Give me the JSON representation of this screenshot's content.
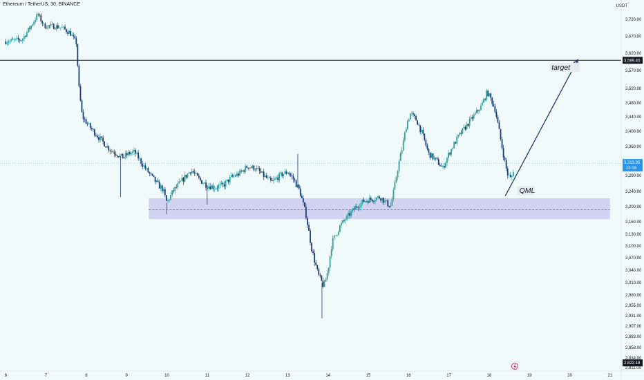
{
  "header": {
    "title": "Ethereum / TetherUS, 30, BINANCE",
    "currency": "USDT"
  },
  "colors": {
    "up": "#26a69a",
    "down": "#1f3c6e",
    "zone": "#c9c9ef",
    "line": "#131722",
    "arrow": "#1f3c6e",
    "last": "#2196f3"
  },
  "chart_data": {
    "type": "candlestick",
    "x_ticks": [
      "6",
      "7",
      "8",
      "9",
      "10",
      "11",
      "12",
      "13",
      "14",
      "15",
      "16",
      "17",
      "18",
      "19",
      "20",
      "21"
    ],
    "y_ticks": [
      {
        "v": 3720,
        "t": "3,720.00"
      },
      {
        "v": 3670,
        "t": "3,670.00"
      },
      {
        "v": 3620,
        "t": "3,620.00"
      },
      {
        "v": 3570,
        "t": "3,570.00"
      },
      {
        "v": 3520,
        "t": "3,520.00"
      },
      {
        "v": 3480,
        "t": "3,480.00"
      },
      {
        "v": 3440,
        "t": "3,440.00"
      },
      {
        "v": 3400,
        "t": "3,400.00"
      },
      {
        "v": 3360,
        "t": "3,360.00"
      },
      {
        "v": 3280,
        "t": "3,280.00"
      },
      {
        "v": 3240,
        "t": "3,240.00"
      },
      {
        "v": 3200,
        "t": "3,200.00"
      },
      {
        "v": 3160,
        "t": "3,160.00"
      },
      {
        "v": 3130,
        "t": "3,130.00"
      },
      {
        "v": 3100,
        "t": "3,100.00"
      },
      {
        "v": 3070,
        "t": "3,070.00"
      },
      {
        "v": 3040,
        "t": "3,040.00"
      },
      {
        "v": 3010,
        "t": "3,010.00"
      },
      {
        "v": 2980,
        "t": "2,980.00"
      },
      {
        "v": 2955,
        "t": "2,955.00"
      },
      {
        "v": 2931,
        "t": "2,931.00"
      },
      {
        "v": 2907,
        "t": "2,907.00"
      },
      {
        "v": 2883,
        "t": "2,883.00"
      },
      {
        "v": 2858,
        "t": "2,858.00"
      },
      {
        "v": 2834,
        "t": "2,834.00"
      },
      {
        "v": 2811,
        "t": "2,811.00"
      }
    ],
    "price_path": [
      {
        "d": 6.0,
        "p": 3655
      },
      {
        "d": 6.4,
        "p": 3660
      },
      {
        "d": 6.6,
        "p": 3695
      },
      {
        "d": 6.8,
        "p": 3735
      },
      {
        "d": 6.95,
        "p": 3700
      },
      {
        "d": 7.2,
        "p": 3700
      },
      {
        "d": 7.4,
        "p": 3695
      },
      {
        "d": 7.6,
        "p": 3680
      },
      {
        "d": 7.75,
        "p": 3650
      },
      {
        "d": 7.82,
        "p": 3520
      },
      {
        "d": 7.9,
        "p": 3440
      },
      {
        "d": 8.1,
        "p": 3410
      },
      {
        "d": 8.3,
        "p": 3385
      },
      {
        "d": 8.6,
        "p": 3350
      },
      {
        "d": 8.9,
        "p": 3330
      },
      {
        "d": 9.05,
        "p": 3340
      },
      {
        "d": 9.2,
        "p": 3345
      },
      {
        "d": 9.4,
        "p": 3310
      },
      {
        "d": 9.6,
        "p": 3280
      },
      {
        "d": 9.75,
        "p": 3260
      },
      {
        "d": 9.9,
        "p": 3245
      },
      {
        "d": 10.0,
        "p": 3210
      },
      {
        "d": 10.15,
        "p": 3240
      },
      {
        "d": 10.4,
        "p": 3270
      },
      {
        "d": 10.6,
        "p": 3295
      },
      {
        "d": 10.8,
        "p": 3270
      },
      {
        "d": 11.0,
        "p": 3255
      },
      {
        "d": 11.2,
        "p": 3250
      },
      {
        "d": 11.4,
        "p": 3255
      },
      {
        "d": 11.6,
        "p": 3275
      },
      {
        "d": 11.8,
        "p": 3285
      },
      {
        "d": 12.0,
        "p": 3305
      },
      {
        "d": 12.2,
        "p": 3300
      },
      {
        "d": 12.4,
        "p": 3280
      },
      {
        "d": 12.6,
        "p": 3262
      },
      {
        "d": 12.8,
        "p": 3280
      },
      {
        "d": 13.0,
        "p": 3290
      },
      {
        "d": 13.15,
        "p": 3270
      },
      {
        "d": 13.3,
        "p": 3240
      },
      {
        "d": 13.45,
        "p": 3180
      },
      {
        "d": 13.6,
        "p": 3090
      },
      {
        "d": 13.75,
        "p": 3030
      },
      {
        "d": 13.9,
        "p": 3000
      },
      {
        "d": 14.0,
        "p": 3040
      },
      {
        "d": 14.1,
        "p": 3110
      },
      {
        "d": 14.3,
        "p": 3150
      },
      {
        "d": 14.5,
        "p": 3175
      },
      {
        "d": 14.7,
        "p": 3200
      },
      {
        "d": 14.9,
        "p": 3215
      },
      {
        "d": 15.1,
        "p": 3220
      },
      {
        "d": 15.3,
        "p": 3225
      },
      {
        "d": 15.45,
        "p": 3210
      },
      {
        "d": 15.55,
        "p": 3200
      },
      {
        "d": 15.65,
        "p": 3250
      },
      {
        "d": 15.75,
        "p": 3310
      },
      {
        "d": 15.85,
        "p": 3360
      },
      {
        "d": 15.95,
        "p": 3420
      },
      {
        "d": 16.05,
        "p": 3450
      },
      {
        "d": 16.2,
        "p": 3430
      },
      {
        "d": 16.35,
        "p": 3390
      },
      {
        "d": 16.5,
        "p": 3340
      },
      {
        "d": 16.7,
        "p": 3320
      },
      {
        "d": 16.85,
        "p": 3300
      },
      {
        "d": 17.0,
        "p": 3340
      },
      {
        "d": 17.2,
        "p": 3380
      },
      {
        "d": 17.4,
        "p": 3410
      },
      {
        "d": 17.6,
        "p": 3440
      },
      {
        "d": 17.8,
        "p": 3470
      },
      {
        "d": 17.95,
        "p": 3510
      },
      {
        "d": 18.05,
        "p": 3490
      },
      {
        "d": 18.15,
        "p": 3460
      },
      {
        "d": 18.25,
        "p": 3400
      },
      {
        "d": 18.35,
        "p": 3340
      },
      {
        "d": 18.45,
        "p": 3285
      },
      {
        "d": 18.55,
        "p": 3270
      },
      {
        "d": 18.62,
        "p": 3305
      }
    ],
    "wick_spikes": [
      {
        "d": 8.85,
        "low": 3225
      },
      {
        "d": 13.25,
        "high": 3340
      },
      {
        "d": 13.85,
        "low": 2925
      },
      {
        "d": 10.0,
        "low": 3180
      },
      {
        "d": 11.0,
        "low": 3205
      }
    ],
    "zone": {
      "d_start": 9.55,
      "d_end": 21.0,
      "top": 3222,
      "bottom": 3167,
      "mid": 3192
    },
    "horizontal_line": {
      "value": 3599.4,
      "label": "3,599.40"
    },
    "last_price": {
      "value": 3313.95,
      "label": "3,313.95",
      "countdown": "23:18"
    },
    "low_label": {
      "value": 2822.18,
      "label": "2,822.18"
    },
    "arrow": {
      "from_d": 18.4,
      "from_p": 3228,
      "to_d": 20.2,
      "to_p": 3601
    },
    "annotations": [
      {
        "text": "target",
        "d": 19.55,
        "p": 3574
      },
      {
        "text": "QML",
        "d": 18.75,
        "p": 3238
      }
    ]
  }
}
